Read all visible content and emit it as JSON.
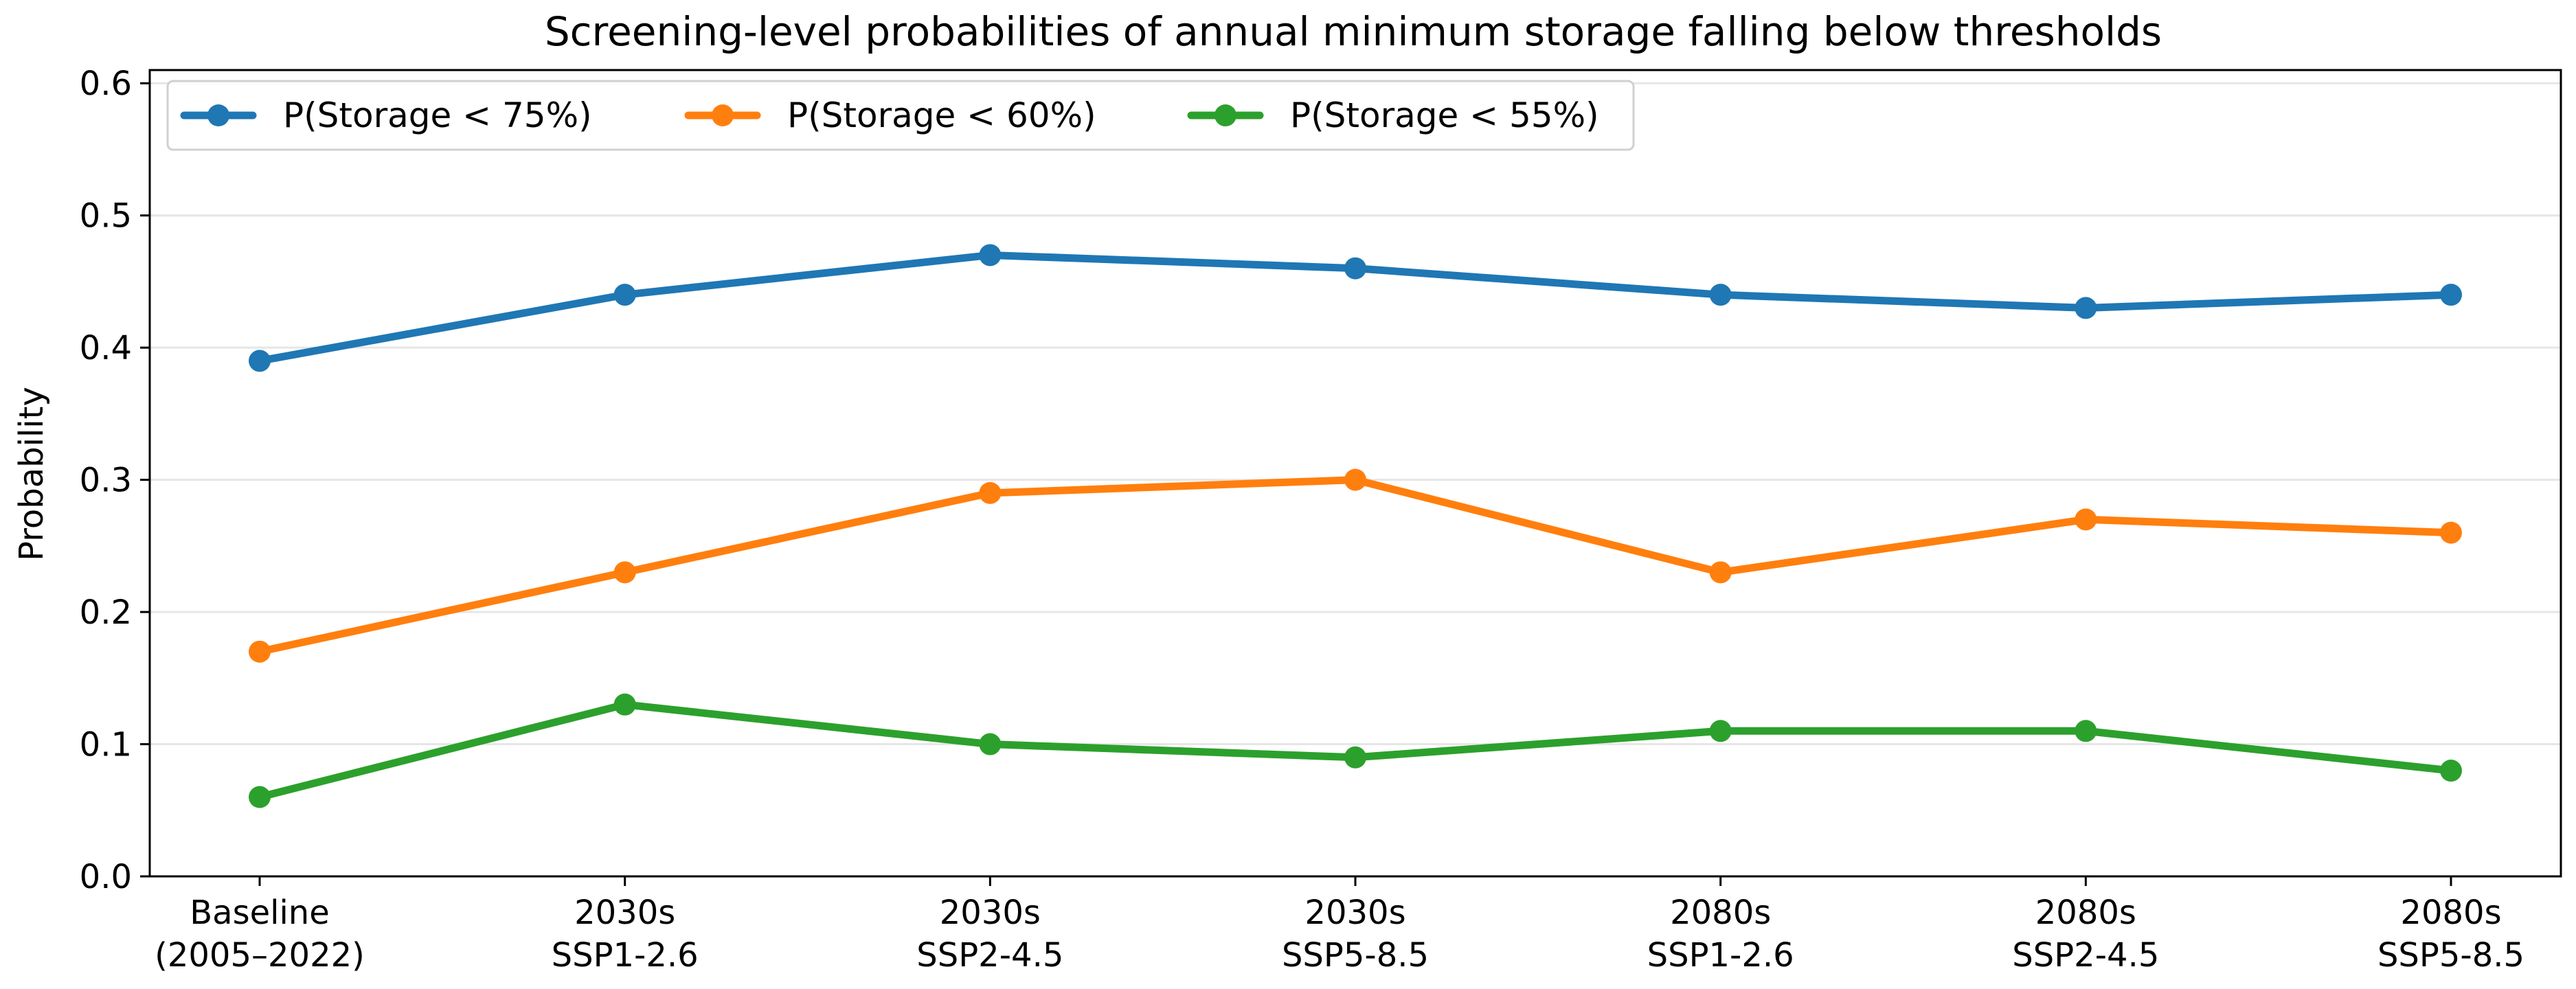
{
  "chart_data": {
    "type": "line",
    "title": "Screening-level probabilities of annual minimum storage falling below thresholds",
    "xlabel": "",
    "ylabel": "Probability",
    "categories": [
      [
        "Baseline",
        "(2005–2022)"
      ],
      [
        "2030s",
        "SSP1-2.6"
      ],
      [
        "2030s",
        "SSP2-4.5"
      ],
      [
        "2030s",
        "SSP5-8.5"
      ],
      [
        "2080s",
        "SSP1-2.6"
      ],
      [
        "2080s",
        "SSP2-4.5"
      ],
      [
        "2080s",
        "SSP5-8.5"
      ]
    ],
    "ylim": [
      0,
      0.6
    ],
    "yticks": [
      "0.0",
      "0.1",
      "0.2",
      "0.3",
      "0.4",
      "0.5",
      "0.6"
    ],
    "grid": "horizontal",
    "legend_position": "top-left",
    "series": [
      {
        "name": "P(Storage < 75%)",
        "color": "#1f77b4",
        "values": [
          0.39,
          0.44,
          0.47,
          0.46,
          0.44,
          0.43,
          0.44
        ]
      },
      {
        "name": "P(Storage < 60%)",
        "color": "#ff7f0e",
        "values": [
          0.17,
          0.23,
          0.29,
          0.3,
          0.23,
          0.27,
          0.26
        ]
      },
      {
        "name": "P(Storage < 55%)",
        "color": "#2ca02c",
        "values": [
          0.06,
          0.13,
          0.1,
          0.09,
          0.11,
          0.11,
          0.08
        ]
      }
    ]
  }
}
